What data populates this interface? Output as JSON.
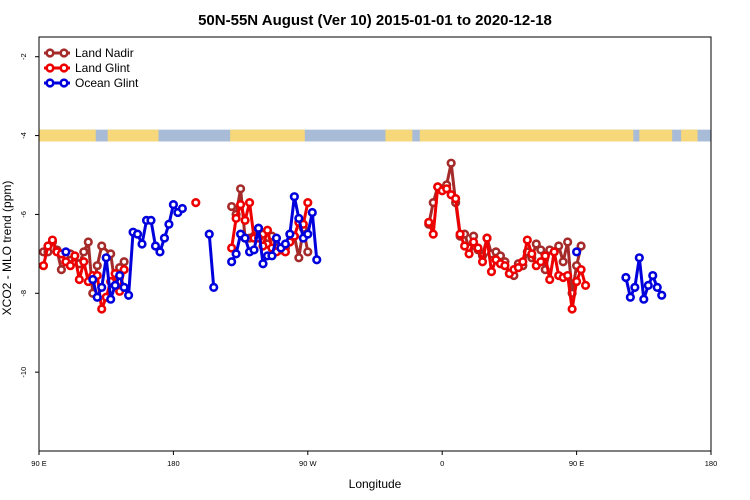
{
  "chart_data": {
    "type": "line",
    "title": "50N-55N August (Ver 10)   2015-01-01 to 2020-12-18",
    "xlabel": "Longitude",
    "ylabel": "XCO2 - MLO trend (ppm)",
    "xlim": [
      90,
      540
    ],
    "ylim": [
      -12,
      -1.5
    ],
    "x_ticks": [
      {
        "value": 90,
        "label": "90 E"
      },
      {
        "value": 180,
        "label": "180"
      },
      {
        "value": 270,
        "label": "90 W"
      },
      {
        "value": 360,
        "label": "0"
      },
      {
        "value": 450,
        "label": "90 E"
      },
      {
        "value": 540,
        "label": "180"
      }
    ],
    "y_ticks": [
      {
        "value": -2,
        "label": "-2"
      },
      {
        "value": -4,
        "label": "-4"
      },
      {
        "value": -6,
        "label": "-6"
      },
      {
        "value": -8,
        "label": "-8"
      },
      {
        "value": -10,
        "label": "-10"
      }
    ],
    "legend_position": "top-left",
    "land_mask_strip": {
      "y_from": -4.15,
      "y_to": -3.85,
      "land_color": "#f6d77a",
      "ocean_color": "#a8bcd8"
    },
    "series": [
      {
        "name": "Land Nadir",
        "color": "#a52a2a",
        "points": [
          [
            93,
            -6.95
          ],
          [
            96,
            -6.95
          ],
          [
            99,
            -6.7
          ],
          [
            102,
            -6.9
          ],
          [
            105,
            -7.4
          ],
          [
            108,
            -7.2
          ],
          [
            111,
            -7.0
          ],
          [
            114,
            -7.2
          ],
          [
            117,
            -7.25
          ],
          [
            120,
            -6.95
          ],
          [
            123,
            -6.7
          ],
          [
            126,
            -8.0
          ],
          [
            129,
            -7.3
          ],
          [
            132,
            -6.8
          ],
          [
            138,
            -7.0
          ],
          [
            141,
            -7.8
          ],
          [
            144,
            -7.35
          ],
          [
            147,
            -7.2
          ],
          [
            219,
            -5.8
          ],
          [
            222,
            -6.0
          ],
          [
            225,
            -5.35
          ],
          [
            228,
            -6.6
          ],
          [
            231,
            -6.6
          ],
          [
            234,
            -6.55
          ],
          [
            237,
            -6.35
          ],
          [
            240,
            -6.5
          ],
          [
            243,
            -6.75
          ],
          [
            246,
            -6.55
          ],
          [
            249,
            -6.85
          ],
          [
            252,
            -6.9
          ],
          [
            255,
            -6.85
          ],
          [
            258,
            -6.5
          ],
          [
            261,
            -6.55
          ],
          [
            264,
            -7.1
          ],
          [
            267,
            -6.35
          ],
          [
            270,
            -6.95
          ],
          [
            351,
            -6.25
          ],
          [
            354,
            -5.7
          ],
          [
            357,
            -5.3
          ],
          [
            360,
            -5.35
          ],
          [
            363,
            -5.25
          ],
          [
            366,
            -4.7
          ],
          [
            369,
            -5.7
          ],
          [
            372,
            -6.55
          ],
          [
            375,
            -6.5
          ],
          [
            378,
            -6.85
          ],
          [
            381,
            -6.55
          ],
          [
            384,
            -6.9
          ],
          [
            387,
            -7.05
          ],
          [
            390,
            -6.6
          ],
          [
            393,
            -7.0
          ],
          [
            396,
            -6.95
          ],
          [
            399,
            -7.05
          ],
          [
            402,
            -7.2
          ],
          [
            405,
            -7.5
          ],
          [
            408,
            -7.55
          ],
          [
            411,
            -7.25
          ],
          [
            414,
            -7.3
          ],
          [
            417,
            -6.95
          ],
          [
            420,
            -7.1
          ],
          [
            423,
            -6.75
          ],
          [
            426,
            -6.9
          ],
          [
            429,
            -7.4
          ],
          [
            432,
            -6.9
          ],
          [
            435,
            -6.95
          ],
          [
            438,
            -6.8
          ],
          [
            441,
            -7.2
          ],
          [
            444,
            -6.7
          ],
          [
            447,
            -8.0
          ],
          [
            450,
            -7.3
          ],
          [
            453,
            -6.8
          ]
        ]
      },
      {
        "name": "Land Glint",
        "color": "#ee0000",
        "points": [
          [
            93,
            -7.3
          ],
          [
            96,
            -6.8
          ],
          [
            99,
            -6.65
          ],
          [
            102,
            -6.95
          ],
          [
            105,
            -7.0
          ],
          [
            108,
            -7.2
          ],
          [
            111,
            -7.3
          ],
          [
            114,
            -7.05
          ],
          [
            117,
            -7.65
          ],
          [
            120,
            -7.2
          ],
          [
            123,
            -7.7
          ],
          [
            126,
            -7.55
          ],
          [
            129,
            -7.55
          ],
          [
            132,
            -8.4
          ],
          [
            135,
            -8.1
          ],
          [
            138,
            -7.7
          ],
          [
            141,
            -7.5
          ],
          [
            144,
            -7.95
          ],
          [
            147,
            -7.4
          ],
          [
            195,
            -5.7
          ],
          [
            219,
            -6.85
          ],
          [
            222,
            -6.1
          ],
          [
            225,
            -5.75
          ],
          [
            228,
            -6.15
          ],
          [
            231,
            -5.7
          ],
          [
            234,
            -6.6
          ],
          [
            237,
            -6.6
          ],
          [
            240,
            -6.8
          ],
          [
            243,
            -6.4
          ],
          [
            246,
            -6.85
          ],
          [
            249,
            -6.95
          ],
          [
            252,
            -6.85
          ],
          [
            255,
            -6.95
          ],
          [
            258,
            -6.7
          ],
          [
            261,
            -6.55
          ],
          [
            264,
            -6.2
          ],
          [
            267,
            -6.25
          ],
          [
            270,
            -5.7
          ],
          [
            351,
            -6.2
          ],
          [
            354,
            -6.5
          ],
          [
            357,
            -5.3
          ],
          [
            360,
            -5.4
          ],
          [
            363,
            -5.35
          ],
          [
            366,
            -5.5
          ],
          [
            369,
            -5.6
          ],
          [
            372,
            -6.5
          ],
          [
            375,
            -6.8
          ],
          [
            378,
            -7.0
          ],
          [
            381,
            -6.7
          ],
          [
            384,
            -6.85
          ],
          [
            387,
            -7.2
          ],
          [
            390,
            -6.6
          ],
          [
            393,
            -7.45
          ],
          [
            396,
            -7.15
          ],
          [
            399,
            -7.25
          ],
          [
            402,
            -7.3
          ],
          [
            405,
            -7.5
          ],
          [
            408,
            -7.4
          ],
          [
            411,
            -7.35
          ],
          [
            414,
            -7.2
          ],
          [
            417,
            -6.65
          ],
          [
            420,
            -7.0
          ],
          [
            423,
            -7.3
          ],
          [
            426,
            -7.2
          ],
          [
            429,
            -7.05
          ],
          [
            432,
            -7.65
          ],
          [
            435,
            -6.95
          ],
          [
            438,
            -7.55
          ],
          [
            441,
            -7.6
          ],
          [
            444,
            -7.55
          ],
          [
            447,
            -8.4
          ],
          [
            450,
            -7.7
          ],
          [
            453,
            -7.4
          ],
          [
            456,
            -7.8
          ]
        ]
      },
      {
        "name": "Ocean Glint",
        "color": "#0000dd",
        "points": [
          [
            108,
            -6.95
          ],
          [
            126,
            -7.65
          ],
          [
            129,
            -8.1
          ],
          [
            132,
            -7.85
          ],
          [
            135,
            -7.1
          ],
          [
            138,
            -8.15
          ],
          [
            141,
            -7.8
          ],
          [
            144,
            -7.55
          ],
          [
            147,
            -7.85
          ],
          [
            150,
            -8.05
          ],
          [
            153,
            -6.45
          ],
          [
            156,
            -6.5
          ],
          [
            159,
            -6.75
          ],
          [
            162,
            -6.15
          ],
          [
            165,
            -6.15
          ],
          [
            168,
            -6.8
          ],
          [
            171,
            -6.95
          ],
          [
            174,
            -6.6
          ],
          [
            177,
            -6.25
          ],
          [
            180,
            -5.75
          ],
          [
            183,
            -5.95
          ],
          [
            186,
            -5.85
          ],
          [
            204,
            -6.5
          ],
          [
            207,
            -7.85
          ],
          [
            219,
            -7.2
          ],
          [
            222,
            -7.0
          ],
          [
            225,
            -6.5
          ],
          [
            228,
            -6.6
          ],
          [
            231,
            -6.95
          ],
          [
            234,
            -6.9
          ],
          [
            237,
            -6.35
          ],
          [
            240,
            -7.25
          ],
          [
            243,
            -7.05
          ],
          [
            246,
            -7.05
          ],
          [
            249,
            -6.6
          ],
          [
            252,
            -6.85
          ],
          [
            255,
            -6.75
          ],
          [
            258,
            -6.5
          ],
          [
            261,
            -5.55
          ],
          [
            264,
            -6.1
          ],
          [
            267,
            -6.6
          ],
          [
            270,
            -6.5
          ],
          [
            273,
            -5.95
          ],
          [
            276,
            -7.15
          ],
          [
            450,
            -6.95
          ],
          [
            483,
            -7.6
          ],
          [
            486,
            -8.1
          ],
          [
            489,
            -7.85
          ],
          [
            492,
            -7.1
          ],
          [
            495,
            -8.15
          ],
          [
            498,
            -7.8
          ],
          [
            501,
            -7.55
          ],
          [
            504,
            -7.85
          ],
          [
            507,
            -8.05
          ]
        ]
      }
    ]
  }
}
